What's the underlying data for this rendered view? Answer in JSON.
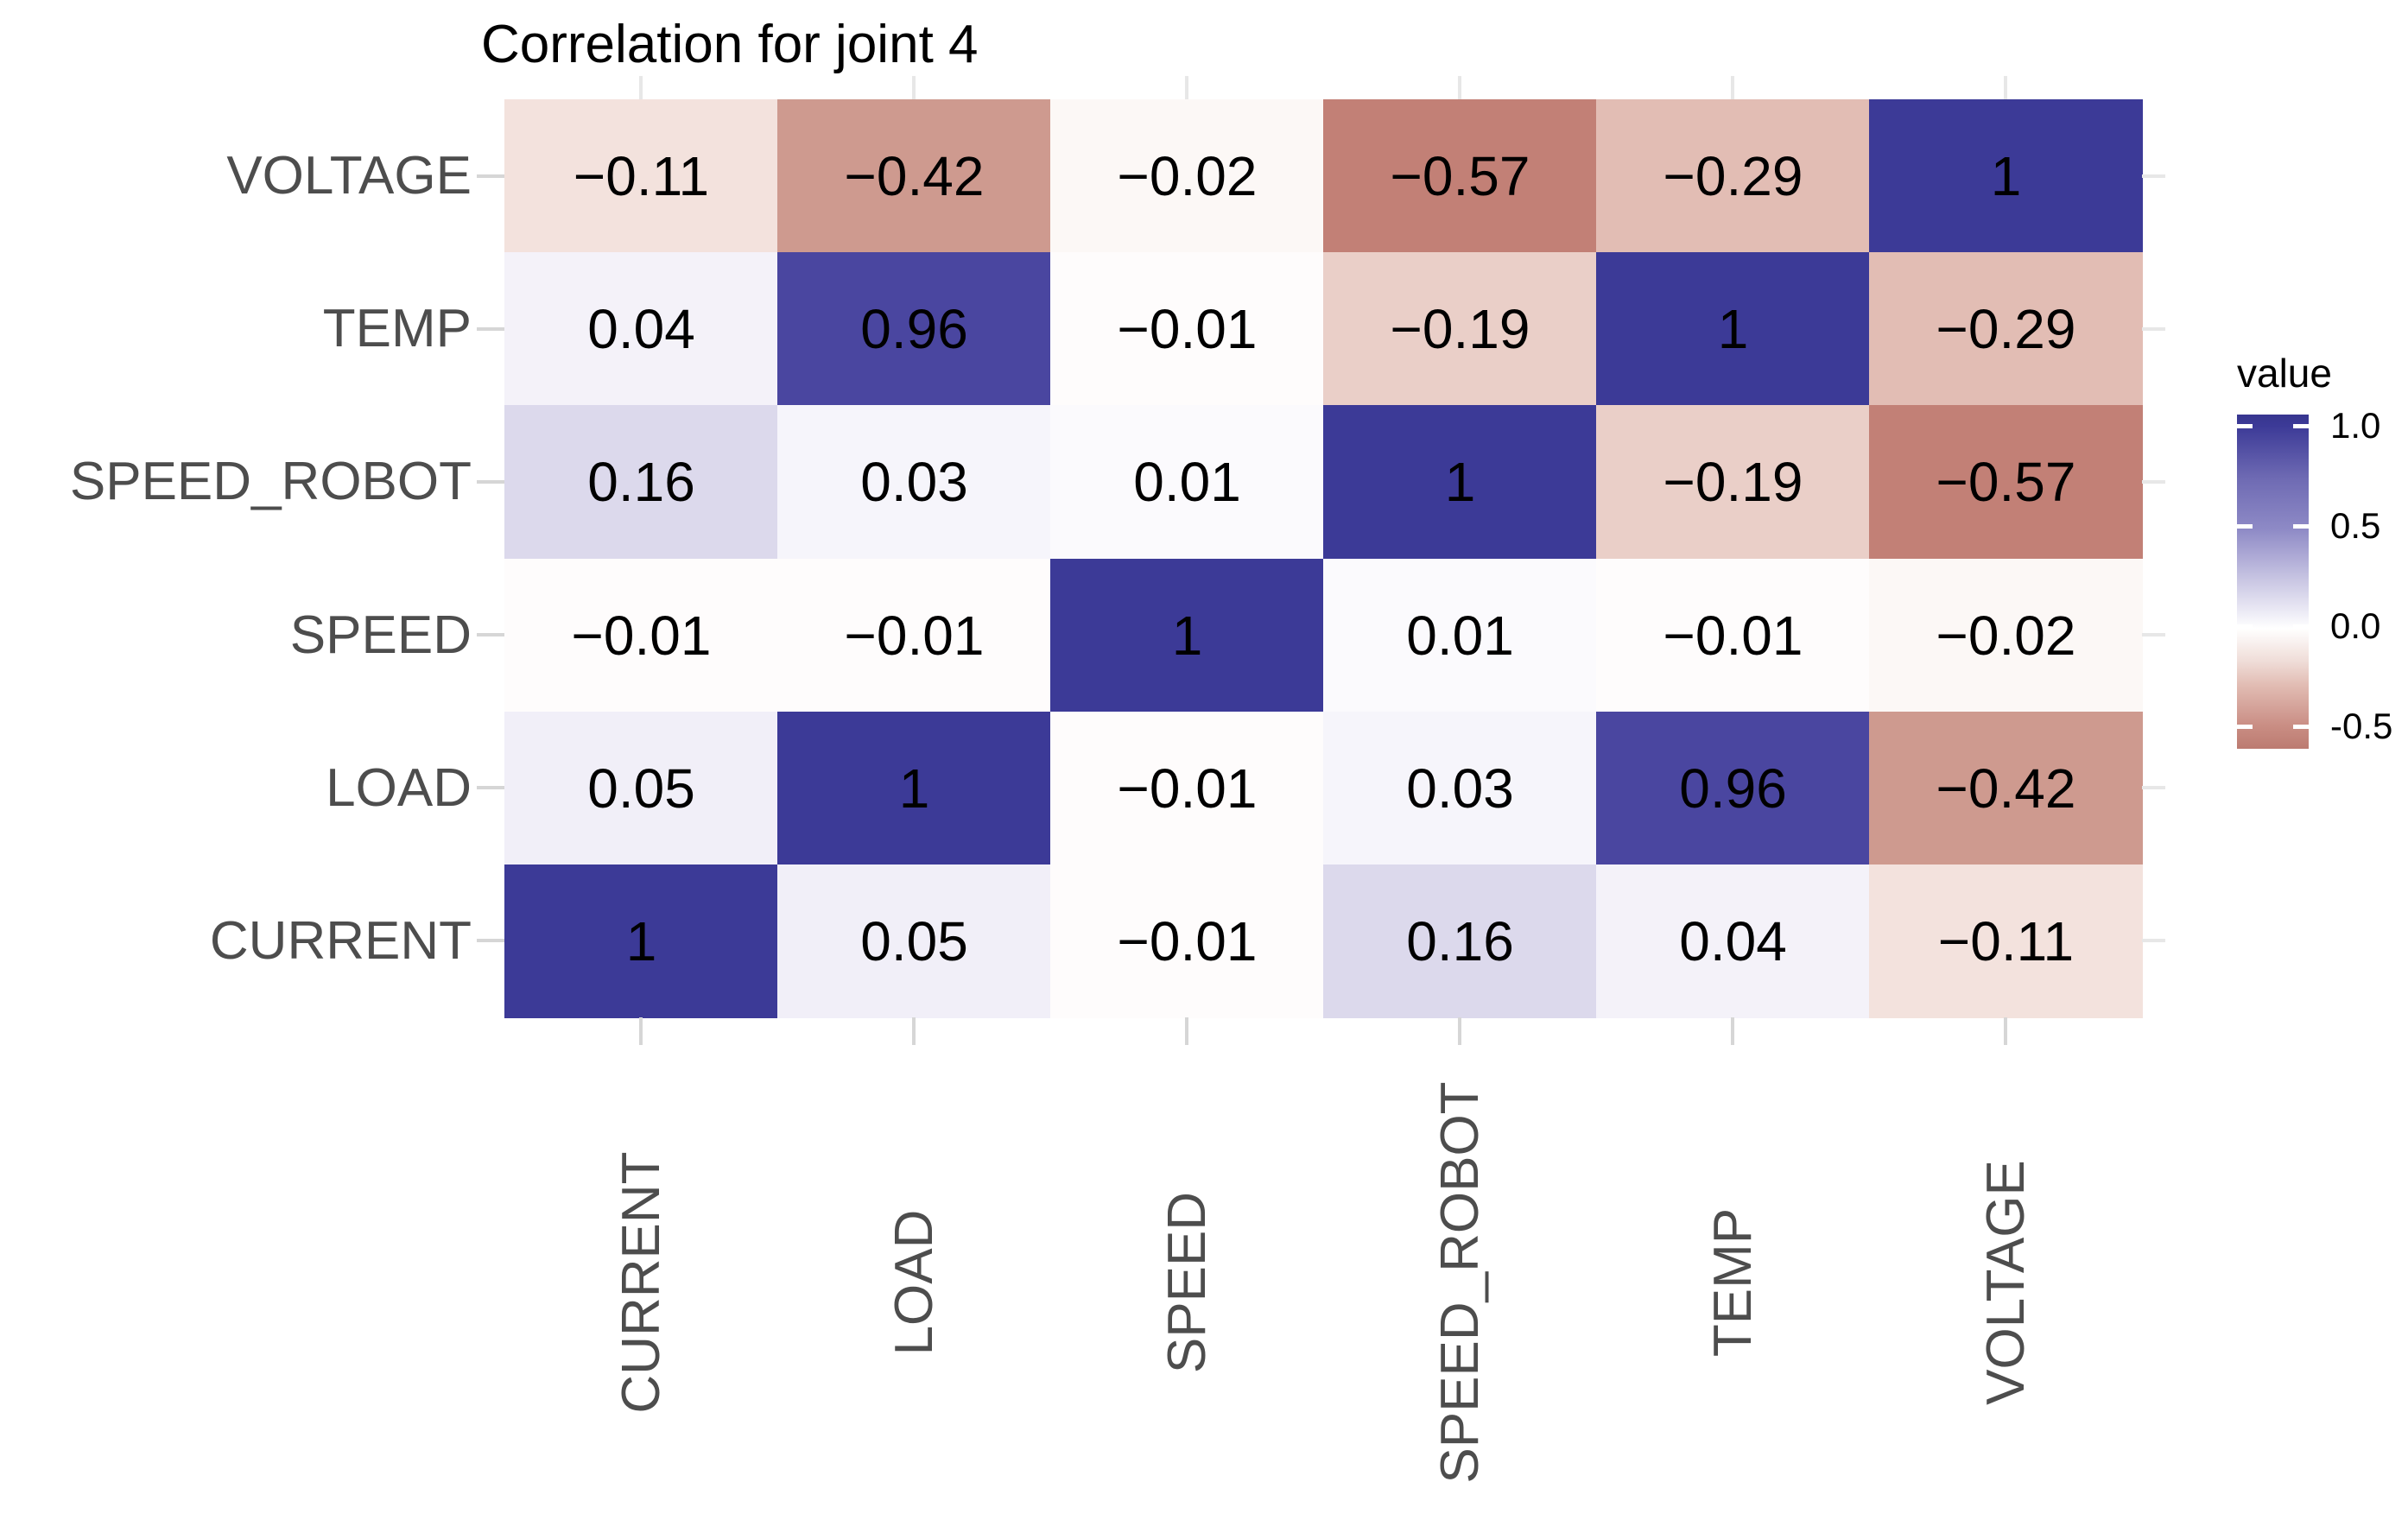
{
  "chart_data": {
    "type": "heatmap",
    "title": "Correlation for joint 4",
    "x_categories": [
      "CURRENT",
      "LOAD",
      "SPEED",
      "SPEED_ROBOT",
      "TEMP",
      "VOLTAGE"
    ],
    "y_categories_top_to_bottom": [
      "VOLTAGE",
      "TEMP",
      "SPEED_ROBOT",
      "SPEED",
      "LOAD",
      "CURRENT"
    ],
    "matrix_rows_top_to_bottom": [
      [
        -0.11,
        -0.42,
        -0.02,
        -0.57,
        -0.29,
        1
      ],
      [
        0.04,
        0.96,
        -0.01,
        -0.19,
        1,
        -0.29
      ],
      [
        0.16,
        0.03,
        0.01,
        1,
        -0.19,
        -0.57
      ],
      [
        -0.01,
        -0.01,
        1,
        0.01,
        -0.01,
        -0.02
      ],
      [
        0.05,
        1,
        -0.01,
        0.03,
        0.96,
        -0.42
      ],
      [
        1,
        0.05,
        -0.01,
        0.16,
        0.04,
        -0.11
      ]
    ],
    "value_colors": {
      "1": "#3C3A97",
      "0.96": "#4A46A0",
      "0.16": "#DCD9EC",
      "0.05": "#F1EFF8",
      "0.04": "#F4F2F9",
      "0.03": "#F6F5FB",
      "0.01": "#FBFAFD",
      "-0.01": "#FEFCFC",
      "-0.02": "#FCF8F6",
      "-0.11": "#F3E2DD",
      "-0.19": "#EACFC8",
      "-0.29": "#E2BDB4",
      "-0.42": "#CE9A8F",
      "-0.57": "#C28076"
    },
    "legend": {
      "title": "value",
      "tick_labels": [
        "1.0",
        "0.5",
        "0.0",
        "-0.5"
      ],
      "tick_values": [
        1.0,
        0.5,
        0.0,
        -0.5
      ],
      "scale_top_value": 1.055,
      "scale_bottom_value": -0.61,
      "gradient_stops": [
        {
          "pos": 0.0,
          "color": "#37368F"
        },
        {
          "pos": 0.034,
          "color": "#3C3A97"
        },
        {
          "pos": 0.19,
          "color": "#6E6AB3"
        },
        {
          "pos": 0.344,
          "color": "#8E8AC6"
        },
        {
          "pos": 0.49,
          "color": "#C7C4E2"
        },
        {
          "pos": 0.641,
          "color": "#FFFFFF"
        },
        {
          "pos": 0.74,
          "color": "#EFDCD7"
        },
        {
          "pos": 0.808,
          "color": "#E2BDB4"
        },
        {
          "pos": 0.933,
          "color": "#C98D83"
        },
        {
          "pos": 1.0,
          "color": "#BC7B71"
        }
      ]
    },
    "style_colors": {
      "axis_text": "#4D4D4D",
      "cell_text": "#000000",
      "title_text": "#000000",
      "axis_tick": "#D6D6D6",
      "panel_grid_peek": "#E7E7E7",
      "background": "#FFFFFF"
    }
  }
}
